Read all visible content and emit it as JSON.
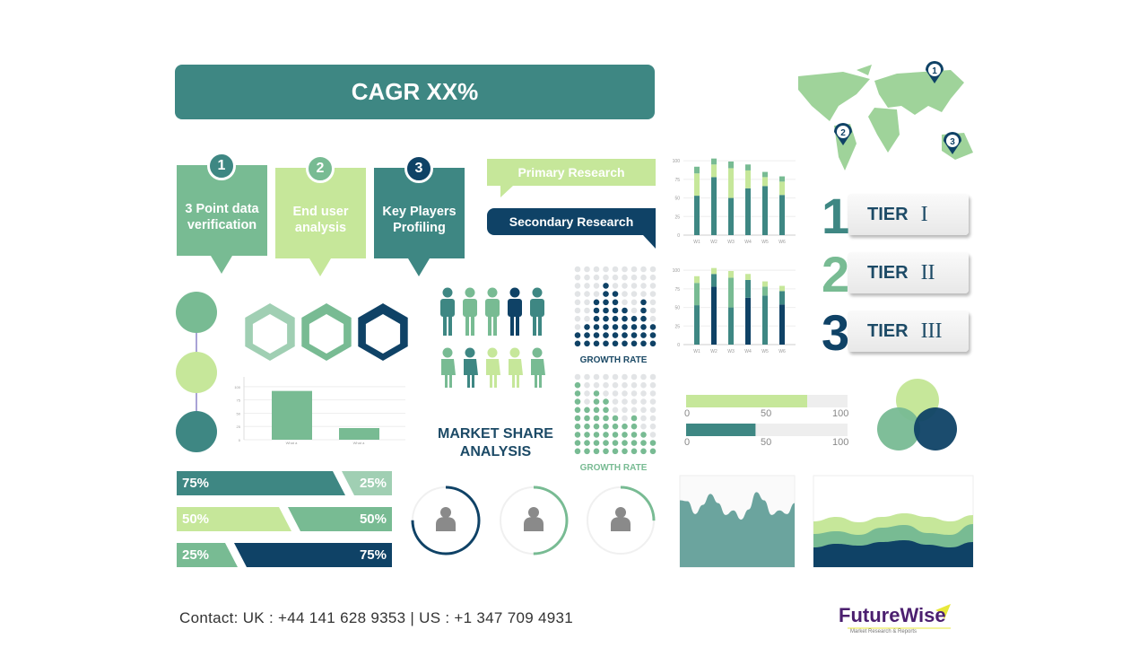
{
  "colors": {
    "teal": "#3e8783",
    "mid_green": "#78bb93",
    "light_green": "#c6e79a",
    "navy": "#0f4266",
    "map": "#9fd39a",
    "logo_purple": "#4b1f6f",
    "logo_yellow": "#e8e83a"
  },
  "cagr": "CAGR XX%",
  "steps": [
    {
      "num": "1",
      "label": "3 Point data verification",
      "color": "#78bb93",
      "numcolor": "#3e8783"
    },
    {
      "num": "2",
      "label": "End user analysis",
      "color": "#c6e79a",
      "numcolor": "#78bb93"
    },
    {
      "num": "3",
      "label": "Key Players Profiling",
      "color": "#3e8783",
      "numcolor": "#0f4266"
    }
  ],
  "research": {
    "primary": "Primary Research",
    "secondary": "Secondary Research"
  },
  "map_pins": [
    "1",
    "2",
    "3"
  ],
  "tiers": [
    {
      "num": "1",
      "label": "TIER",
      "roman": "I"
    },
    {
      "num": "2",
      "label": "TIER",
      "roman": "II"
    },
    {
      "num": "3",
      "label": "TIER",
      "roman": "III"
    }
  ],
  "market_share": {
    "line1": "MARKET SHARE",
    "line2": "ANALYSIS"
  },
  "growth_rate": [
    "GROWTH RATE",
    "GROWTH RATE"
  ],
  "chart_data": [
    {
      "type": "bar",
      "stacked": true,
      "categories": [
        "W1",
        "W2",
        "W3",
        "W4",
        "W5",
        "W6"
      ],
      "yticks": [
        0,
        25,
        50,
        75,
        100
      ],
      "ylim": [
        0,
        105
      ],
      "series": [
        {
          "values": [
            53,
            78,
            50,
            63,
            66,
            54
          ]
        },
        {
          "values": [
            30,
            17,
            40,
            24,
            12,
            18
          ]
        },
        {
          "values": [
            9,
            8,
            9,
            8,
            7,
            7
          ]
        }
      ]
    },
    {
      "type": "bar",
      "stacked": true,
      "categories": [
        "W1",
        "W2",
        "W3",
        "W4",
        "W5",
        "W6"
      ],
      "yticks": [
        0,
        25,
        50,
        75,
        100
      ],
      "ylim": [
        0,
        105
      ],
      "series": [
        {
          "values": [
            53,
            78,
            50,
            63,
            66,
            54
          ]
        },
        {
          "values": [
            30,
            17,
            40,
            24,
            12,
            18
          ]
        },
        {
          "values": [
            9,
            8,
            9,
            8,
            7,
            7
          ]
        }
      ]
    },
    {
      "type": "bar",
      "categories": [
        "What a",
        "What a"
      ],
      "values": [
        92,
        22
      ],
      "yticks": [
        0,
        25,
        50,
        75,
        100
      ],
      "ylim": [
        0,
        110
      ]
    },
    {
      "type": "dot-matrix",
      "rows": 10,
      "columns": [
        2,
        3,
        6,
        8,
        7,
        5,
        4,
        6,
        3
      ],
      "label": "GROWTH RATE"
    },
    {
      "type": "dot-matrix",
      "rows": 10,
      "columns": [
        9,
        6,
        8,
        7,
        5,
        4,
        5,
        3,
        2
      ],
      "label": "GROWTH RATE"
    },
    {
      "type": "progress",
      "value": 75,
      "ticks": [
        "0",
        "50",
        "100"
      ]
    },
    {
      "type": "progress",
      "value": 43,
      "ticks": [
        "0",
        "50",
        "100"
      ]
    },
    {
      "type": "area",
      "values": [
        73,
        72,
        58,
        68,
        80,
        70,
        57,
        62,
        52,
        63,
        82,
        73,
        57,
        62,
        58,
        70
      ]
    },
    {
      "type": "area",
      "stacked": true,
      "series": [
        {
          "values": [
            22,
            26,
            24,
            28,
            30,
            25,
            22,
            28
          ]
        },
        {
          "values": [
            15,
            14,
            12,
            16,
            17,
            13,
            14,
            20
          ]
        },
        {
          "values": [
            14,
            16,
            14,
            12,
            13,
            18,
            15,
            10
          ]
        }
      ]
    }
  ],
  "split_bars": [
    {
      "left": "75%",
      "right": "25%",
      "lv": 75
    },
    {
      "left": "50%",
      "right": "50%",
      "lv": 50
    },
    {
      "left": "25%",
      "right": "75%",
      "lv": 25
    }
  ],
  "rings": [
    {
      "value": 75,
      "color": "#0f4266"
    },
    {
      "value": 50,
      "color": "#78bb93"
    },
    {
      "value": 25,
      "color": "#78bb93"
    }
  ],
  "contact": "Contact:  UK : +44 141 628 9353  |  US :  +1 347 709 4931",
  "logo": {
    "name": "FutureWise",
    "tagline": "Market Research & Reports"
  }
}
